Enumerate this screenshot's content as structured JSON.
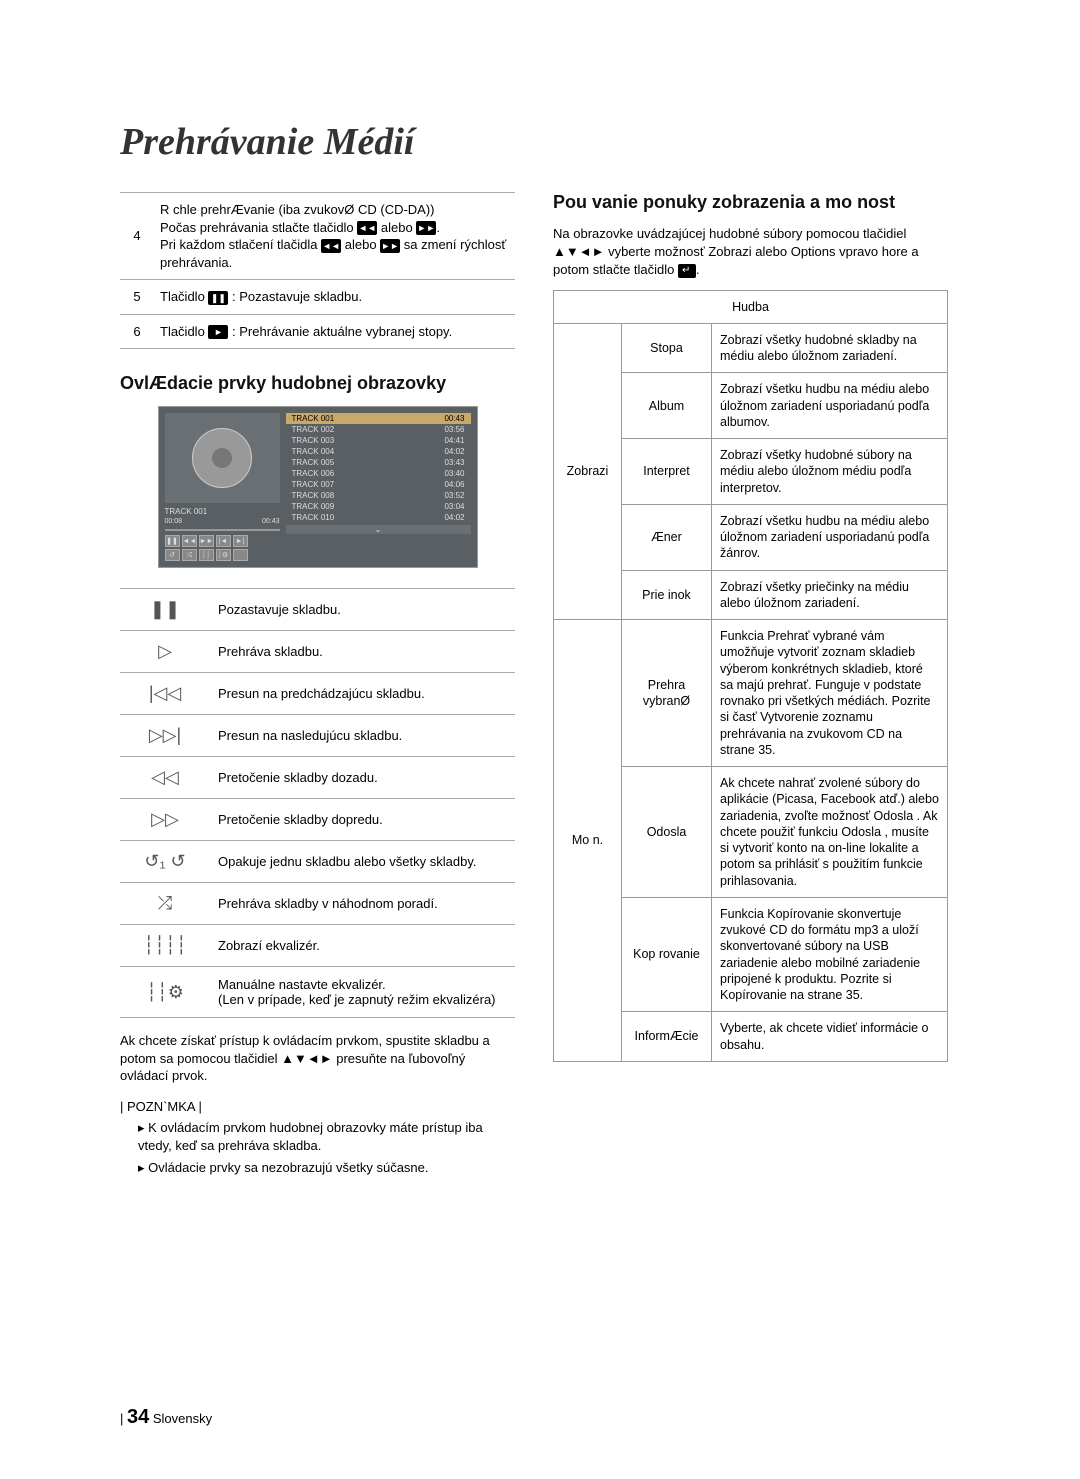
{
  "title": "Prehrávanie Médií",
  "pageNumber": "34",
  "pageLang": "Slovensky",
  "steps": [
    {
      "num": "4",
      "text": "R chle prehrÆvanie (iba zvukovØ CD (CD-DA))\nPočas prehrávania stlačte tlačidlo ◄◄ alebo ►►.\nPri každom stlačení tlačidla ◄◄ alebo ►► sa zmení rýchlosť prehrávania."
    },
    {
      "num": "5",
      "text": "Tlačidlo ❚❚ : Pozastavuje skladbu."
    },
    {
      "num": "6",
      "text": "Tlačidlo ► : Prehrávanie aktuálne vybranej stopy."
    }
  ],
  "subheadControls": "OvlÆdacie prvky hudobnej obrazovky",
  "player": {
    "currentTrack": "TRACK 001",
    "timeStart": "00:08",
    "timeEnd": "00:43",
    "tracks": [
      {
        "name": "TRACK 001",
        "time": "00:43",
        "active": true
      },
      {
        "name": "TRACK 002",
        "time": "03:56"
      },
      {
        "name": "TRACK 003",
        "time": "04:41"
      },
      {
        "name": "TRACK 004",
        "time": "04:02"
      },
      {
        "name": "TRACK 005",
        "time": "03:43"
      },
      {
        "name": "TRACK 006",
        "time": "03:40"
      },
      {
        "name": "TRACK 007",
        "time": "04:06"
      },
      {
        "name": "TRACK 008",
        "time": "03:52"
      },
      {
        "name": "TRACK 009",
        "time": "03:04"
      },
      {
        "name": "TRACK 010",
        "time": "04:02"
      }
    ]
  },
  "controls": [
    {
      "icon": "❚❚",
      "desc": "Pozastavuje skladbu."
    },
    {
      "icon": "▷",
      "desc": "Prehráva skladbu."
    },
    {
      "icon": "|◁◁",
      "desc": "Presun na predchádzajúcu skladbu."
    },
    {
      "icon": "▷▷|",
      "desc": "Presun na nasledujúcu skladbu."
    },
    {
      "icon": "◁◁",
      "desc": "Pretočenie skladby dozadu."
    },
    {
      "icon": "▷▷",
      "desc": "Pretočenie skladby dopredu."
    },
    {
      "icon": "↺₁ ↺",
      "desc": "Opakuje jednu skladbu alebo všetky skladby."
    },
    {
      "icon": "⤮",
      "desc": "Prehráva skladby v náhodnom poradí."
    },
    {
      "icon": "┆┆┆┆",
      "desc": "Zobrazí ekvalizér."
    },
    {
      "icon": "┆┆⚙",
      "desc": "Manuálne nastavte ekvalizér.\n(Len v prípade, keď je zapnutý režim ekvalizéra)"
    }
  ],
  "controlsNoteText": "Ak chcete získať prístup k ovládacím prvkom, spustite skladbu a potom sa pomocou tlačidiel ▲▼◄► presuňte na ľubovoľný ovládací prvok.",
  "noteLabel": "| POZN`MKA |",
  "noteItems": [
    "K ovládacím prvkom hudobnej obrazovky máte prístup iba vtedy, keď sa prehráva skladba.",
    "Ovládacie prvky sa nezobrazujú všetky súčasne."
  ],
  "subheadOptions": "Pou  vanie ponuky zobrazenia a mo nost",
  "optionsIntro": "Na obrazovke uvádzajúcej hudobné súbory pomocou tlačidiel ▲▼◄► vyberte možnosť Zobrazi  alebo Options  vpravo hore a potom stlačte tlačidlo",
  "optionsHeader": "Hudba",
  "zobraziLabel": "Zobrazi",
  "zobraziRows": [
    {
      "name": "Stopa",
      "desc": "Zobrazí všetky hudobné skladby na médiu alebo úložnom zariadení."
    },
    {
      "name": "Album",
      "desc": "Zobrazí všetku hudbu na médiu alebo úložnom zariadení usporiadanú podľa albumov."
    },
    {
      "name": "Interpret",
      "desc": "Zobrazí všetky hudobné súbory na médiu alebo úložnom médiu podľa interpretov."
    },
    {
      "name": "Æner",
      "desc": "Zobrazí všetku hudbu na médiu alebo úložnom zariadení usporiadanú podľa žánrov."
    },
    {
      "name": "Prie inok",
      "desc": "Zobrazí všetky priečinky na médiu alebo úložnom zariadení."
    }
  ],
  "moznLabel": "Mo n.",
  "moznRows": [
    {
      "name": "Prehra  vybranØ",
      "desc": "Funkcia Prehrať vybrané vám umožňuje vytvoriť zoznam skladieb výberom konkrétnych skladieb, ktoré sa majú prehrať. Funguje v podstate rovnako pri všetkých médiách. Pozrite si časť Vytvorenie zoznamu prehrávania na zvukovom CD na strane 35."
    },
    {
      "name": "Odosla",
      "desc": "Ak chcete nahrať zvolené súbory do aplikácie (Picasa, Facebook atď.) alebo zariadenia, zvoľte možnosť Odosla . Ak chcete použiť funkciu Odosla , musíte si vytvoriť konto na on-line lokalite a potom sa prihlásiť s použitím funkcie prihlasovania."
    },
    {
      "name": "Kop rovanie",
      "desc": "Funkcia Kopírovanie skonvertuje zvukové CD do formátu mp3 a uloží skonvertované súbory na USB zariadenie alebo mobilné zariadenie pripojené k produktu. Pozrite si Kopírovanie na strane 35."
    },
    {
      "name": "InformÆcie",
      "desc": "Vyberte, ak chcete vidieť informácie o obsahu."
    }
  ]
}
